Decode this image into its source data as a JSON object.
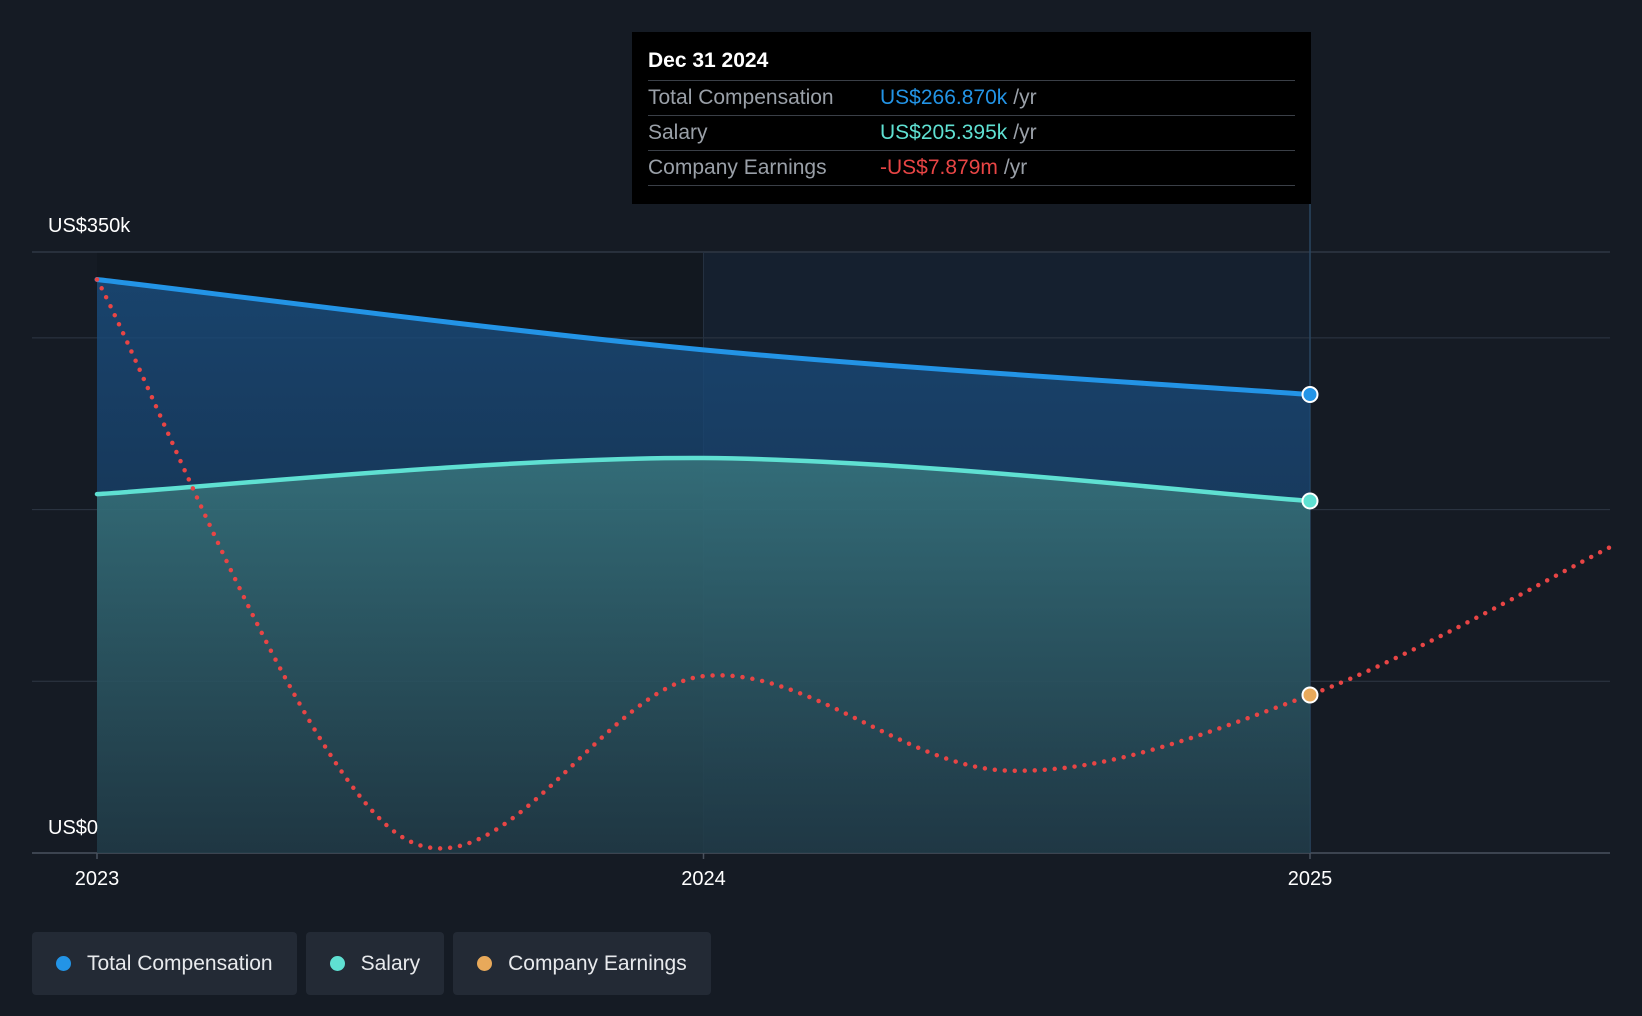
{
  "chart_data": {
    "type": "area",
    "y_axis": {
      "top_label": "US$350k",
      "bottom_label": "US$0",
      "ylim": [
        0,
        350
      ]
    },
    "x_axis": {
      "tick_labels": [
        "2023",
        "2024",
        "2025"
      ],
      "xlim": [
        2022.9,
        2025.5
      ]
    },
    "series": [
      {
        "name": "Total Compensation",
        "color": "#2394e6",
        "x": [
          2023.0,
          2024.0,
          2025.0
        ],
        "values": [
          334,
          293,
          267
        ]
      },
      {
        "name": "Salary",
        "color": "#5fe0d2",
        "x": [
          2023.0,
          2024.0,
          2025.0
        ],
        "values": [
          209,
          230,
          205
        ]
      },
      {
        "name": "Company Earnings",
        "color": "#e84545",
        "style": "dotted",
        "note": "separate scale",
        "x": [
          2023.0,
          2023.5,
          2024.0,
          2024.5,
          2025.0,
          2025.5
        ],
        "values": [
          334,
          10,
          103,
          48,
          92,
          179
        ]
      }
    ],
    "highlight_x": 2025.0
  },
  "tooltip": {
    "date": "Dec 31 2024",
    "rows": [
      {
        "label": "Total Compensation",
        "value": "US$266.870k",
        "unit": "/yr",
        "color": "#2394e6"
      },
      {
        "label": "Salary",
        "value": "US$205.395k",
        "unit": "/yr",
        "color": "#5fe0d2"
      },
      {
        "label": "Company Earnings",
        "value": "-US$7.879m",
        "unit": "/yr",
        "color": "#e84545"
      }
    ]
  },
  "legend": [
    {
      "label": "Total Compensation",
      "color": "#2394e6"
    },
    {
      "label": "Salary",
      "color": "#5fe0d2"
    },
    {
      "label": "Company Earnings",
      "color": "#e8a95a"
    }
  ]
}
